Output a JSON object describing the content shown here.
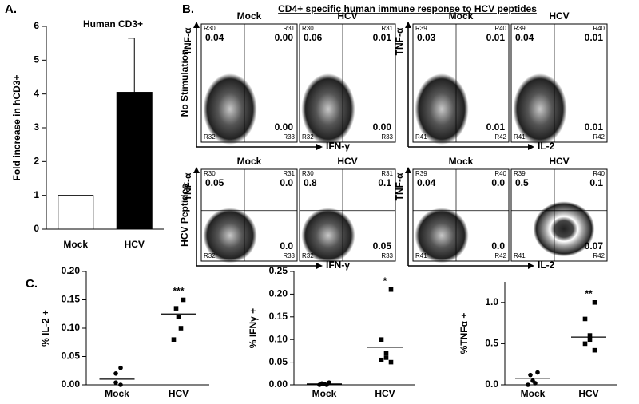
{
  "panel_labels": [
    "A.",
    "B.",
    "C."
  ],
  "chart_data": [
    {
      "type": "bar",
      "title": "Human CD3+",
      "ylabel": "Fold increase in hCD3+",
      "categories": [
        "Mock",
        "HCV"
      ],
      "values": [
        1,
        4.05
      ],
      "errors": [
        0,
        1.6
      ],
      "colors": [
        "#ffffff",
        "#000000"
      ],
      "ylim": [
        0,
        6
      ],
      "yticks": [
        0,
        1,
        2,
        3,
        4,
        5,
        6
      ]
    },
    {
      "type": "dot",
      "ylabel": "% IL-2 +",
      "annotation": "***",
      "categories": [
        "Mock",
        "HCV"
      ],
      "points": [
        [
          0.03,
          0.02,
          0.004,
          0.0
        ],
        [
          0.15,
          0.135,
          0.12,
          0.1,
          0.08
        ]
      ],
      "medians": [
        0.01,
        0.125
      ],
      "ylim": [
        0,
        0.2
      ],
      "yticks": [
        {
          "value": 0,
          "label": "0.00"
        },
        {
          "value": 0.05,
          "label": "0.05"
        },
        {
          "value": 0.1,
          "label": "0.10"
        },
        {
          "value": 0.15,
          "label": "0.15"
        },
        {
          "value": 0.2,
          "label": "0.20"
        }
      ]
    },
    {
      "type": "dot",
      "ylabel": "% IFNγ +",
      "annotation": "*",
      "categories": [
        "Mock",
        "HCV"
      ],
      "points": [
        [
          0.005,
          0.003,
          0.002,
          0.0,
          0.0
        ],
        [
          0.21,
          0.1,
          0.07,
          0.06,
          0.055,
          0.05
        ]
      ],
      "medians": [
        0.002,
        0.083
      ],
      "ylim": [
        0,
        0.25
      ],
      "yticks": [
        {
          "value": 0,
          "label": "0.00"
        },
        {
          "value": 0.05,
          "label": "0.05"
        },
        {
          "value": 0.1,
          "label": "0.10"
        },
        {
          "value": 0.15,
          "label": "0.15"
        },
        {
          "value": 0.2,
          "label": "0.20"
        },
        {
          "value": 0.25,
          "label": "0.25"
        }
      ]
    },
    {
      "type": "dot",
      "ylabel": "%TNFα +",
      "annotation": "**",
      "categories": [
        "Mock",
        "HCV"
      ],
      "points": [
        [
          0.15,
          0.12,
          0.05,
          0.02,
          0.0
        ],
        [
          1.0,
          0.8,
          0.6,
          0.55,
          0.5,
          0.42
        ]
      ],
      "medians": [
        0.08,
        0.58
      ],
      "ylim": [
        0,
        1.25
      ],
      "yticks": [
        {
          "value": 0,
          "label": "0.0"
        },
        {
          "value": 0.5,
          "label": "0.5"
        },
        {
          "value": 1,
          "label": "1.0"
        }
      ]
    }
  ],
  "flow": {
    "title": "CD4+ specific human immune response to HCV peptides",
    "row_labels": [
      "No Stimulation",
      "HCV Peptides"
    ],
    "y_label": "TNF-α",
    "blocks": [
      {
        "x_label": "IFN-γ",
        "regions": [
          "R30",
          "R31",
          "R32",
          "R33"
        ],
        "plots": [
          [
            {
              "condition": "Mock",
              "ul": "0.04",
              "ur": "0.00",
              "lr": "0.00"
            },
            {
              "condition": "HCV",
              "ul": "0.06",
              "ur": "0.01",
              "lr": "0.00"
            }
          ],
          [
            {
              "condition": "Mock",
              "ul": "0.05",
              "ur": "0.0",
              "lr": "0.0"
            },
            {
              "condition": "HCV",
              "ul": "0.8",
              "ur": "0.1",
              "lr": "0.05"
            }
          ]
        ]
      },
      {
        "x_label": "IL-2",
        "regions": [
          "R39",
          "R40",
          "R41",
          "R42"
        ],
        "plots": [
          [
            {
              "condition": "Mock",
              "ul": "0.03",
              "ur": "0.01",
              "lr": "0.01"
            },
            {
              "condition": "HCV",
              "ul": "0.04",
              "ur": "0.01",
              "lr": "0.01"
            }
          ],
          [
            {
              "condition": "Mock",
              "ul": "0.04",
              "ur": "0.0",
              "lr": "0.0"
            },
            {
              "condition": "HCV",
              "ul": "0.5",
              "ur": "0.1",
              "lr": "0.07"
            }
          ]
        ]
      }
    ]
  }
}
